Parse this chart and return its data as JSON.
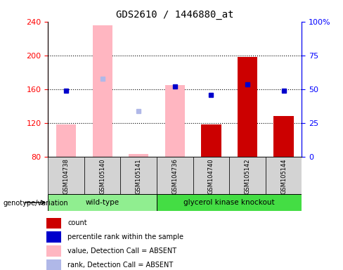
{
  "title": "GDS2610 / 1446880_at",
  "samples": [
    "GSM104738",
    "GSM105140",
    "GSM105141",
    "GSM104736",
    "GSM104740",
    "GSM105142",
    "GSM105144"
  ],
  "ylim_left": [
    80,
    240
  ],
  "ylim_right": [
    0,
    100
  ],
  "yticks_left": [
    80,
    120,
    160,
    200,
    240
  ],
  "yticks_right": [
    0,
    25,
    50,
    75,
    100
  ],
  "ytick_labels_right": [
    "0",
    "25",
    "50",
    "75",
    "100%"
  ],
  "absent_value_bars": [
    118,
    236,
    83,
    165,
    null,
    null,
    null
  ],
  "absent_rank_dots": [
    null,
    172,
    134,
    null,
    null,
    null,
    null
  ],
  "present_value_bars": [
    null,
    null,
    null,
    null,
    118,
    198,
    128
  ],
  "present_rank_dots": [
    158,
    null,
    null,
    163,
    153,
    166,
    158
  ],
  "absent_bar_color": "#ffb6c1",
  "absent_rank_color": "#b0b8e8",
  "present_bar_color": "#cc0000",
  "present_rank_color": "#0000cc",
  "bar_width": 0.55,
  "wild_type_color": "#90ee90",
  "knockout_color": "#44dd44",
  "sample_box_color": "#d3d3d3",
  "legend_items": [
    {
      "label": "count",
      "color": "#cc0000"
    },
    {
      "label": "percentile rank within the sample",
      "color": "#0000cc"
    },
    {
      "label": "value, Detection Call = ABSENT",
      "color": "#ffb6c1"
    },
    {
      "label": "rank, Detection Call = ABSENT",
      "color": "#b0b8e8"
    }
  ],
  "genotype_label": "genotype/variation",
  "wild_type_label": "wild-type",
  "knockout_label": "glycerol kinase knockout"
}
